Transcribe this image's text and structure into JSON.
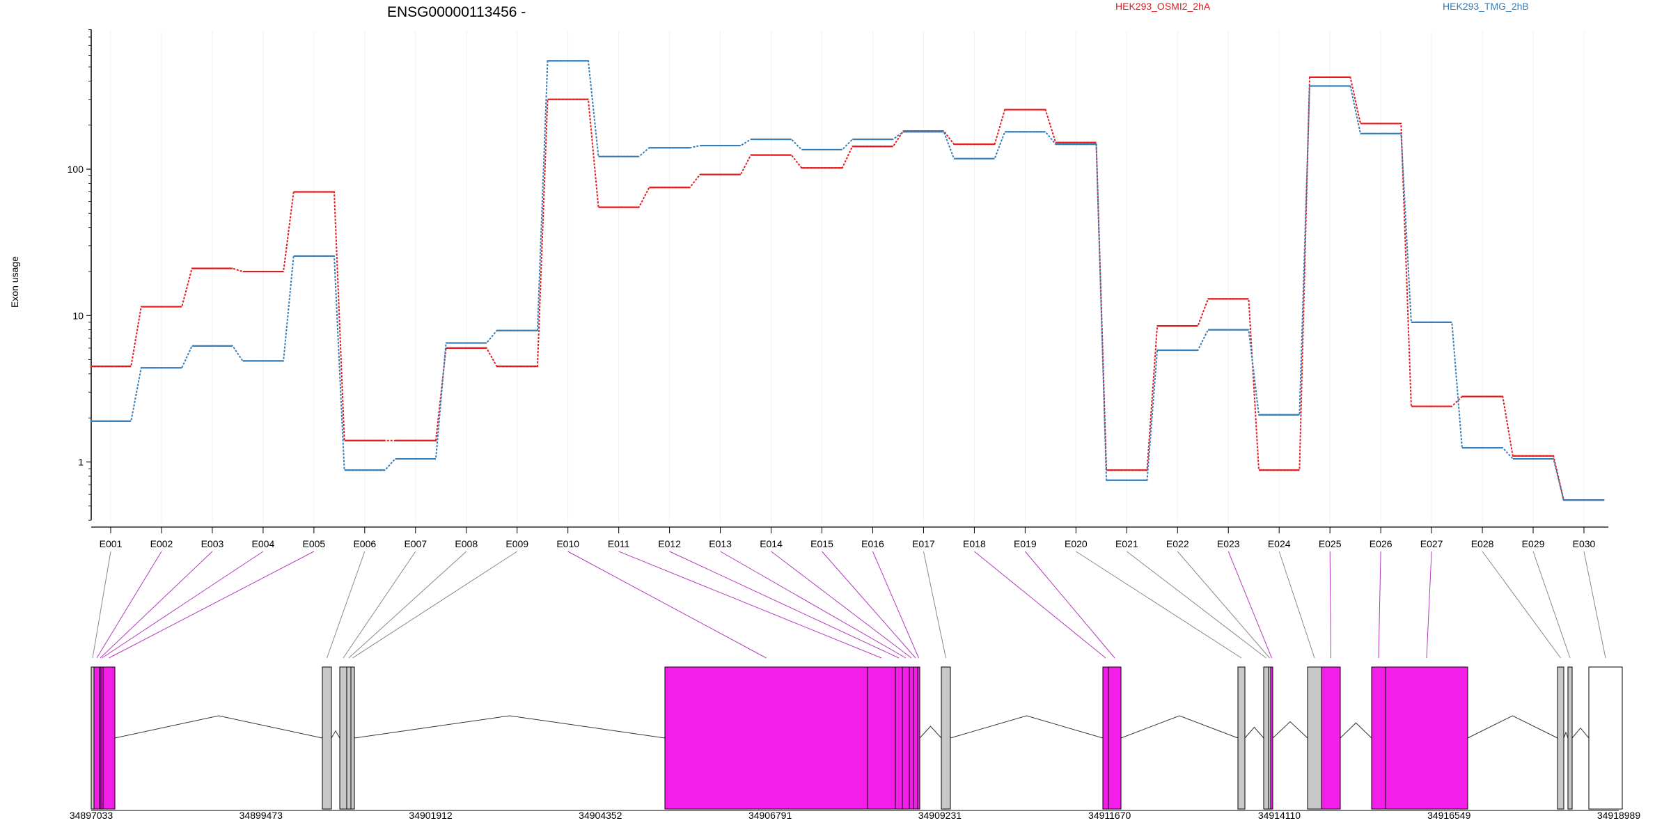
{
  "chart_data": {
    "type": "line",
    "title": "ENSG00000113456 -",
    "ylabel": "Exon usage",
    "yscale": "log",
    "ylim": [
      0.4,
      900
    ],
    "yticks": [
      {
        "value": 1,
        "label": "1"
      },
      {
        "value": 10,
        "label": "10"
      },
      {
        "value": 100,
        "label": "100"
      }
    ],
    "categories": [
      "E001",
      "E002",
      "E003",
      "E004",
      "E005",
      "E006",
      "E007",
      "E008",
      "E009",
      "E010",
      "E011",
      "E012",
      "E013",
      "E014",
      "E015",
      "E016",
      "E017",
      "E018",
      "E019",
      "E020",
      "E021",
      "E022",
      "E023",
      "E024",
      "E025",
      "E026",
      "E027",
      "E028",
      "E029",
      "E030"
    ],
    "series": [
      {
        "name": "HEK293_OSMI2_2hA",
        "color": "#e41a1c",
        "values": [
          4.5,
          11.5,
          21,
          20,
          70,
          1.4,
          1.4,
          6,
          4.5,
          300,
          55,
          75,
          92,
          125,
          102,
          143,
          182,
          148,
          255,
          152,
          0.88,
          8.5,
          13,
          0.88,
          425,
          205,
          2.4,
          2.8,
          1.1,
          0.55
        ]
      },
      {
        "name": "HEK293_TMG_2hB",
        "color": "#377eb8",
        "values": [
          1.9,
          4.4,
          6.2,
          4.9,
          25.5,
          0.88,
          1.05,
          6.5,
          7.9,
          550,
          122,
          140,
          145,
          160,
          136,
          160,
          180,
          118,
          180,
          148,
          0.75,
          5.8,
          8,
          2.1,
          370,
          175,
          9,
          1.25,
          1.05,
          0.55
        ]
      }
    ],
    "gene_model": {
      "coordinate_ticks": [
        "34897033",
        "34899473",
        "34901912",
        "34904352",
        "34906791",
        "34909231",
        "34911670",
        "34914110",
        "34916549",
        "34918989"
      ],
      "highlight_color": "#f31fe8",
      "exon_color": "#c8c8c8",
      "highlighted_exons": [
        "E002",
        "E003",
        "E004",
        "E005",
        "E010",
        "E011",
        "E012",
        "E013",
        "E014",
        "E015",
        "E016",
        "E018",
        "E019",
        "E023",
        "E025",
        "E026",
        "E027"
      ]
    }
  }
}
